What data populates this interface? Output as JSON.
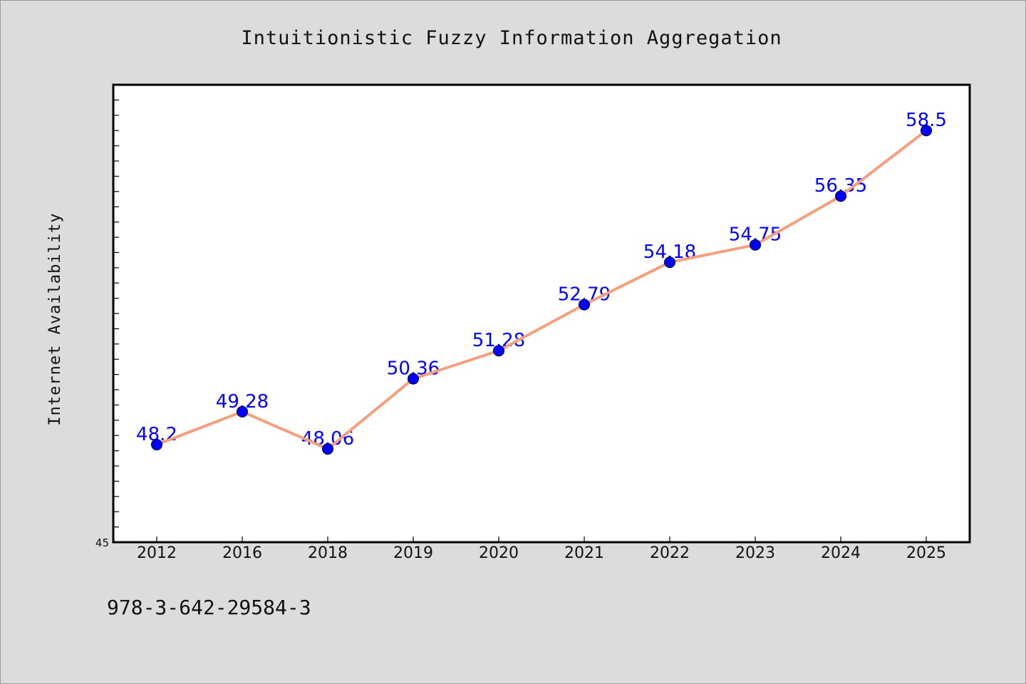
{
  "chart_data": {
    "type": "line",
    "title": "Intuitionistic Fuzzy Information Aggregation",
    "xlabel": "",
    "ylabel": "Internet Availability",
    "categories": [
      "2012",
      "2016",
      "2018",
      "2019",
      "2020",
      "2021",
      "2022",
      "2023",
      "2024",
      "2025"
    ],
    "series": [
      {
        "values": [
          48.2,
          49.28,
          48.06,
          50.36,
          51.28,
          52.79,
          54.18,
          54.75,
          56.35,
          58.5
        ],
        "data_labels": [
          "48.2",
          "49.28",
          "48.06",
          "50.36",
          "51.28",
          "52.79",
          "54.18",
          "54.75",
          "56.35",
          "58.5"
        ]
      }
    ],
    "ylim": [
      45,
      60
    ],
    "y_tick_labels": [
      "45"
    ],
    "grid": false,
    "legend": "none",
    "colors": {
      "line": "#f4a07e",
      "marker": "#0000ff",
      "label": "#0000ff",
      "plot_background": "#ffffff",
      "page_background": "#dcdcdc"
    }
  },
  "footer": {
    "text": "978-3-642-29584-3"
  }
}
